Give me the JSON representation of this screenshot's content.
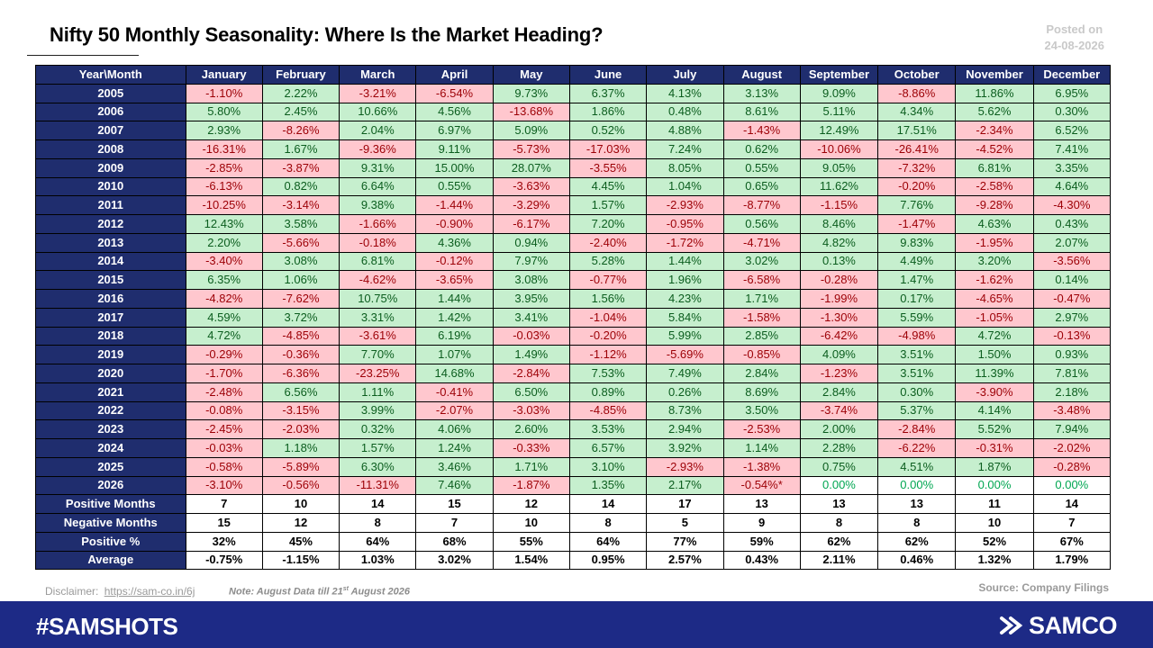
{
  "header": {
    "title": "Nifty 50 Monthly Seasonality: Where Is the Market Heading?",
    "posted_label": "Posted on",
    "posted_date": "24-08-2026"
  },
  "table": {
    "corner": "Year\\Month",
    "months": [
      "January",
      "February",
      "March",
      "April",
      "May",
      "June",
      "July",
      "August",
      "September",
      "October",
      "November",
      "December"
    ],
    "years": [
      {
        "year": "2005",
        "values": [
          "-1.10%",
          "2.22%",
          "-3.21%",
          "-6.54%",
          "9.73%",
          "6.37%",
          "4.13%",
          "3.13%",
          "9.09%",
          "-8.86%",
          "11.86%",
          "6.95%"
        ]
      },
      {
        "year": "2006",
        "values": [
          "5.80%",
          "2.45%",
          "10.66%",
          "4.56%",
          "-13.68%",
          "1.86%",
          "0.48%",
          "8.61%",
          "5.11%",
          "4.34%",
          "5.62%",
          "0.30%"
        ]
      },
      {
        "year": "2007",
        "values": [
          "2.93%",
          "-8.26%",
          "2.04%",
          "6.97%",
          "5.09%",
          "0.52%",
          "4.88%",
          "-1.43%",
          "12.49%",
          "17.51%",
          "-2.34%",
          "6.52%"
        ]
      },
      {
        "year": "2008",
        "values": [
          "-16.31%",
          "1.67%",
          "-9.36%",
          "9.11%",
          "-5.73%",
          "-17.03%",
          "7.24%",
          "0.62%",
          "-10.06%",
          "-26.41%",
          "-4.52%",
          "7.41%"
        ]
      },
      {
        "year": "2009",
        "values": [
          "-2.85%",
          "-3.87%",
          "9.31%",
          "15.00%",
          "28.07%",
          "-3.55%",
          "8.05%",
          "0.55%",
          "9.05%",
          "-7.32%",
          "6.81%",
          "3.35%"
        ]
      },
      {
        "year": "2010",
        "values": [
          "-6.13%",
          "0.82%",
          "6.64%",
          "0.55%",
          "-3.63%",
          "4.45%",
          "1.04%",
          "0.65%",
          "11.62%",
          "-0.20%",
          "-2.58%",
          "4.64%"
        ]
      },
      {
        "year": "2011",
        "values": [
          "-10.25%",
          "-3.14%",
          "9.38%",
          "-1.44%",
          "-3.29%",
          "1.57%",
          "-2.93%",
          "-8.77%",
          "-1.15%",
          "7.76%",
          "-9.28%",
          "-4.30%"
        ]
      },
      {
        "year": "2012",
        "values": [
          "12.43%",
          "3.58%",
          "-1.66%",
          "-0.90%",
          "-6.17%",
          "7.20%",
          "-0.95%",
          "0.56%",
          "8.46%",
          "-1.47%",
          "4.63%",
          "0.43%"
        ]
      },
      {
        "year": "2013",
        "values": [
          "2.20%",
          "-5.66%",
          "-0.18%",
          "4.36%",
          "0.94%",
          "-2.40%",
          "-1.72%",
          "-4.71%",
          "4.82%",
          "9.83%",
          "-1.95%",
          "2.07%"
        ]
      },
      {
        "year": "2014",
        "values": [
          "-3.40%",
          "3.08%",
          "6.81%",
          "-0.12%",
          "7.97%",
          "5.28%",
          "1.44%",
          "3.02%",
          "0.13%",
          "4.49%",
          "3.20%",
          "-3.56%"
        ]
      },
      {
        "year": "2015",
        "values": [
          "6.35%",
          "1.06%",
          "-4.62%",
          "-3.65%",
          "3.08%",
          "-0.77%",
          "1.96%",
          "-6.58%",
          "-0.28%",
          "1.47%",
          "-1.62%",
          "0.14%"
        ]
      },
      {
        "year": "2016",
        "values": [
          "-4.82%",
          "-7.62%",
          "10.75%",
          "1.44%",
          "3.95%",
          "1.56%",
          "4.23%",
          "1.71%",
          "-1.99%",
          "0.17%",
          "-4.65%",
          "-0.47%"
        ]
      },
      {
        "year": "2017",
        "values": [
          "4.59%",
          "3.72%",
          "3.31%",
          "1.42%",
          "3.41%",
          "-1.04%",
          "5.84%",
          "-1.58%",
          "-1.30%",
          "5.59%",
          "-1.05%",
          "2.97%"
        ]
      },
      {
        "year": "2018",
        "values": [
          "4.72%",
          "-4.85%",
          "-3.61%",
          "6.19%",
          "-0.03%",
          "-0.20%",
          "5.99%",
          "2.85%",
          "-6.42%",
          "-4.98%",
          "4.72%",
          "-0.13%"
        ]
      },
      {
        "year": "2019",
        "values": [
          "-0.29%",
          "-0.36%",
          "7.70%",
          "1.07%",
          "1.49%",
          "-1.12%",
          "-5.69%",
          "-0.85%",
          "4.09%",
          "3.51%",
          "1.50%",
          "0.93%"
        ]
      },
      {
        "year": "2020",
        "values": [
          "-1.70%",
          "-6.36%",
          "-23.25%",
          "14.68%",
          "-2.84%",
          "7.53%",
          "7.49%",
          "2.84%",
          "-1.23%",
          "3.51%",
          "11.39%",
          "7.81%"
        ]
      },
      {
        "year": "2021",
        "values": [
          "-2.48%",
          "6.56%",
          "1.11%",
          "-0.41%",
          "6.50%",
          "0.89%",
          "0.26%",
          "8.69%",
          "2.84%",
          "0.30%",
          "-3.90%",
          "2.18%"
        ]
      },
      {
        "year": "2022",
        "values": [
          "-0.08%",
          "-3.15%",
          "3.99%",
          "-2.07%",
          "-3.03%",
          "-4.85%",
          "8.73%",
          "3.50%",
          "-3.74%",
          "5.37%",
          "4.14%",
          "-3.48%"
        ]
      },
      {
        "year": "2023",
        "values": [
          "-2.45%",
          "-2.03%",
          "0.32%",
          "4.06%",
          "2.60%",
          "3.53%",
          "2.94%",
          "-2.53%",
          "2.00%",
          "-2.84%",
          "5.52%",
          "7.94%"
        ]
      },
      {
        "year": "2024",
        "values": [
          "-0.03%",
          "1.18%",
          "1.57%",
          "1.24%",
          "-0.33%",
          "6.57%",
          "3.92%",
          "1.14%",
          "2.28%",
          "-6.22%",
          "-0.31%",
          "-2.02%"
        ]
      },
      {
        "year": "2025",
        "values": [
          "-0.58%",
          "-5.89%",
          "6.30%",
          "3.46%",
          "1.71%",
          "3.10%",
          "-2.93%",
          "-1.38%",
          "0.75%",
          "4.51%",
          "1.87%",
          "-0.28%"
        ]
      },
      {
        "year": "2026",
        "values": [
          "-3.10%",
          "-0.56%",
          "-11.31%",
          "7.46%",
          "-1.87%",
          "1.35%",
          "2.17%",
          "-0.54%*",
          "0.00%",
          "0.00%",
          "0.00%",
          "0.00%"
        ]
      }
    ],
    "stats": [
      {
        "label": "Positive Months",
        "values": [
          "7",
          "10",
          "14",
          "15",
          "12",
          "14",
          "17",
          "13",
          "13",
          "13",
          "11",
          "14"
        ]
      },
      {
        "label": "Negative Months",
        "values": [
          "15",
          "12",
          "8",
          "7",
          "10",
          "8",
          "5",
          "9",
          "8",
          "8",
          "10",
          "7"
        ]
      },
      {
        "label": "Positive %",
        "values": [
          "32%",
          "45%",
          "64%",
          "68%",
          "55%",
          "64%",
          "77%",
          "59%",
          "62%",
          "62%",
          "52%",
          "67%"
        ]
      },
      {
        "label": "Average",
        "values": [
          "-0.75%",
          "-1.15%",
          "1.03%",
          "3.02%",
          "1.54%",
          "0.95%",
          "2.57%",
          "0.43%",
          "2.11%",
          "0.46%",
          "1.32%",
          "1.79%"
        ]
      }
    ]
  },
  "footnotes": {
    "disclaimer_label": "Disclaimer:",
    "disclaimer_link": "https://sam-co.in/6j",
    "note_prefix": "Note: August Data till 21",
    "note_sup": "st",
    "note_suffix": " August 2026",
    "source": "Source: Company Filings"
  },
  "footer": {
    "hashtag": "#SAMSHOTS",
    "brand": "SAMCO",
    "background_color": "#1d2a86"
  },
  "colors": {
    "header_navy": "#1f2d6e",
    "positive_fill": "#c6efce",
    "negative_fill": "#ffc7ce"
  }
}
